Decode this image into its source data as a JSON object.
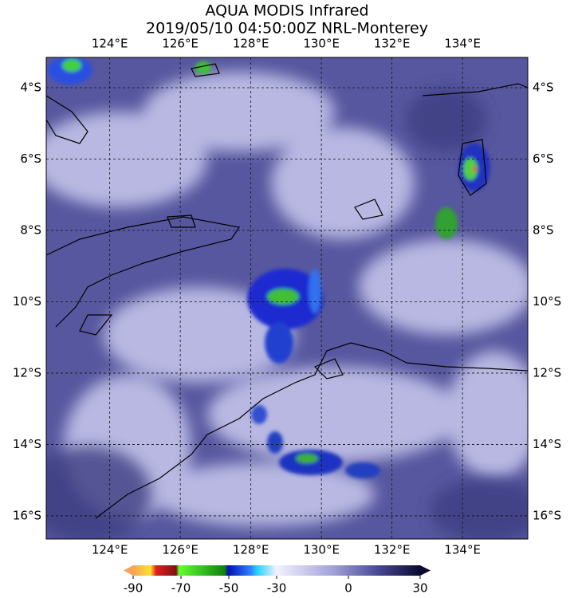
{
  "title": "AQUA MODIS Infrared",
  "subtitle": "2019/05/10 04:50:00Z NRL-Monterey",
  "map": {
    "lonlim": [
      122.2,
      135.85
    ],
    "latlim": [
      -3.15,
      -16.65
    ],
    "lonticks": [
      {
        "value": 124,
        "label": "124°E"
      },
      {
        "value": 126,
        "label": "126°E"
      },
      {
        "value": 128,
        "label": "128°E"
      },
      {
        "value": 130,
        "label": "130°E"
      },
      {
        "value": 132,
        "label": "132°E"
      },
      {
        "value": 134,
        "label": "134°E"
      }
    ],
    "latticks": [
      {
        "value": -4,
        "label": "4°S"
      },
      {
        "value": -6,
        "label": "6°S"
      },
      {
        "value": -8,
        "label": "8°S"
      },
      {
        "value": -10,
        "label": "10°S"
      },
      {
        "value": -12,
        "label": "12°S"
      },
      {
        "value": -14,
        "label": "14°S"
      },
      {
        "value": -16,
        "label": "16°S"
      }
    ]
  },
  "colorbar": {
    "lim": [
      -90,
      30
    ],
    "ticks": [
      -90,
      -70,
      -50,
      -30,
      0,
      30
    ]
  }
}
